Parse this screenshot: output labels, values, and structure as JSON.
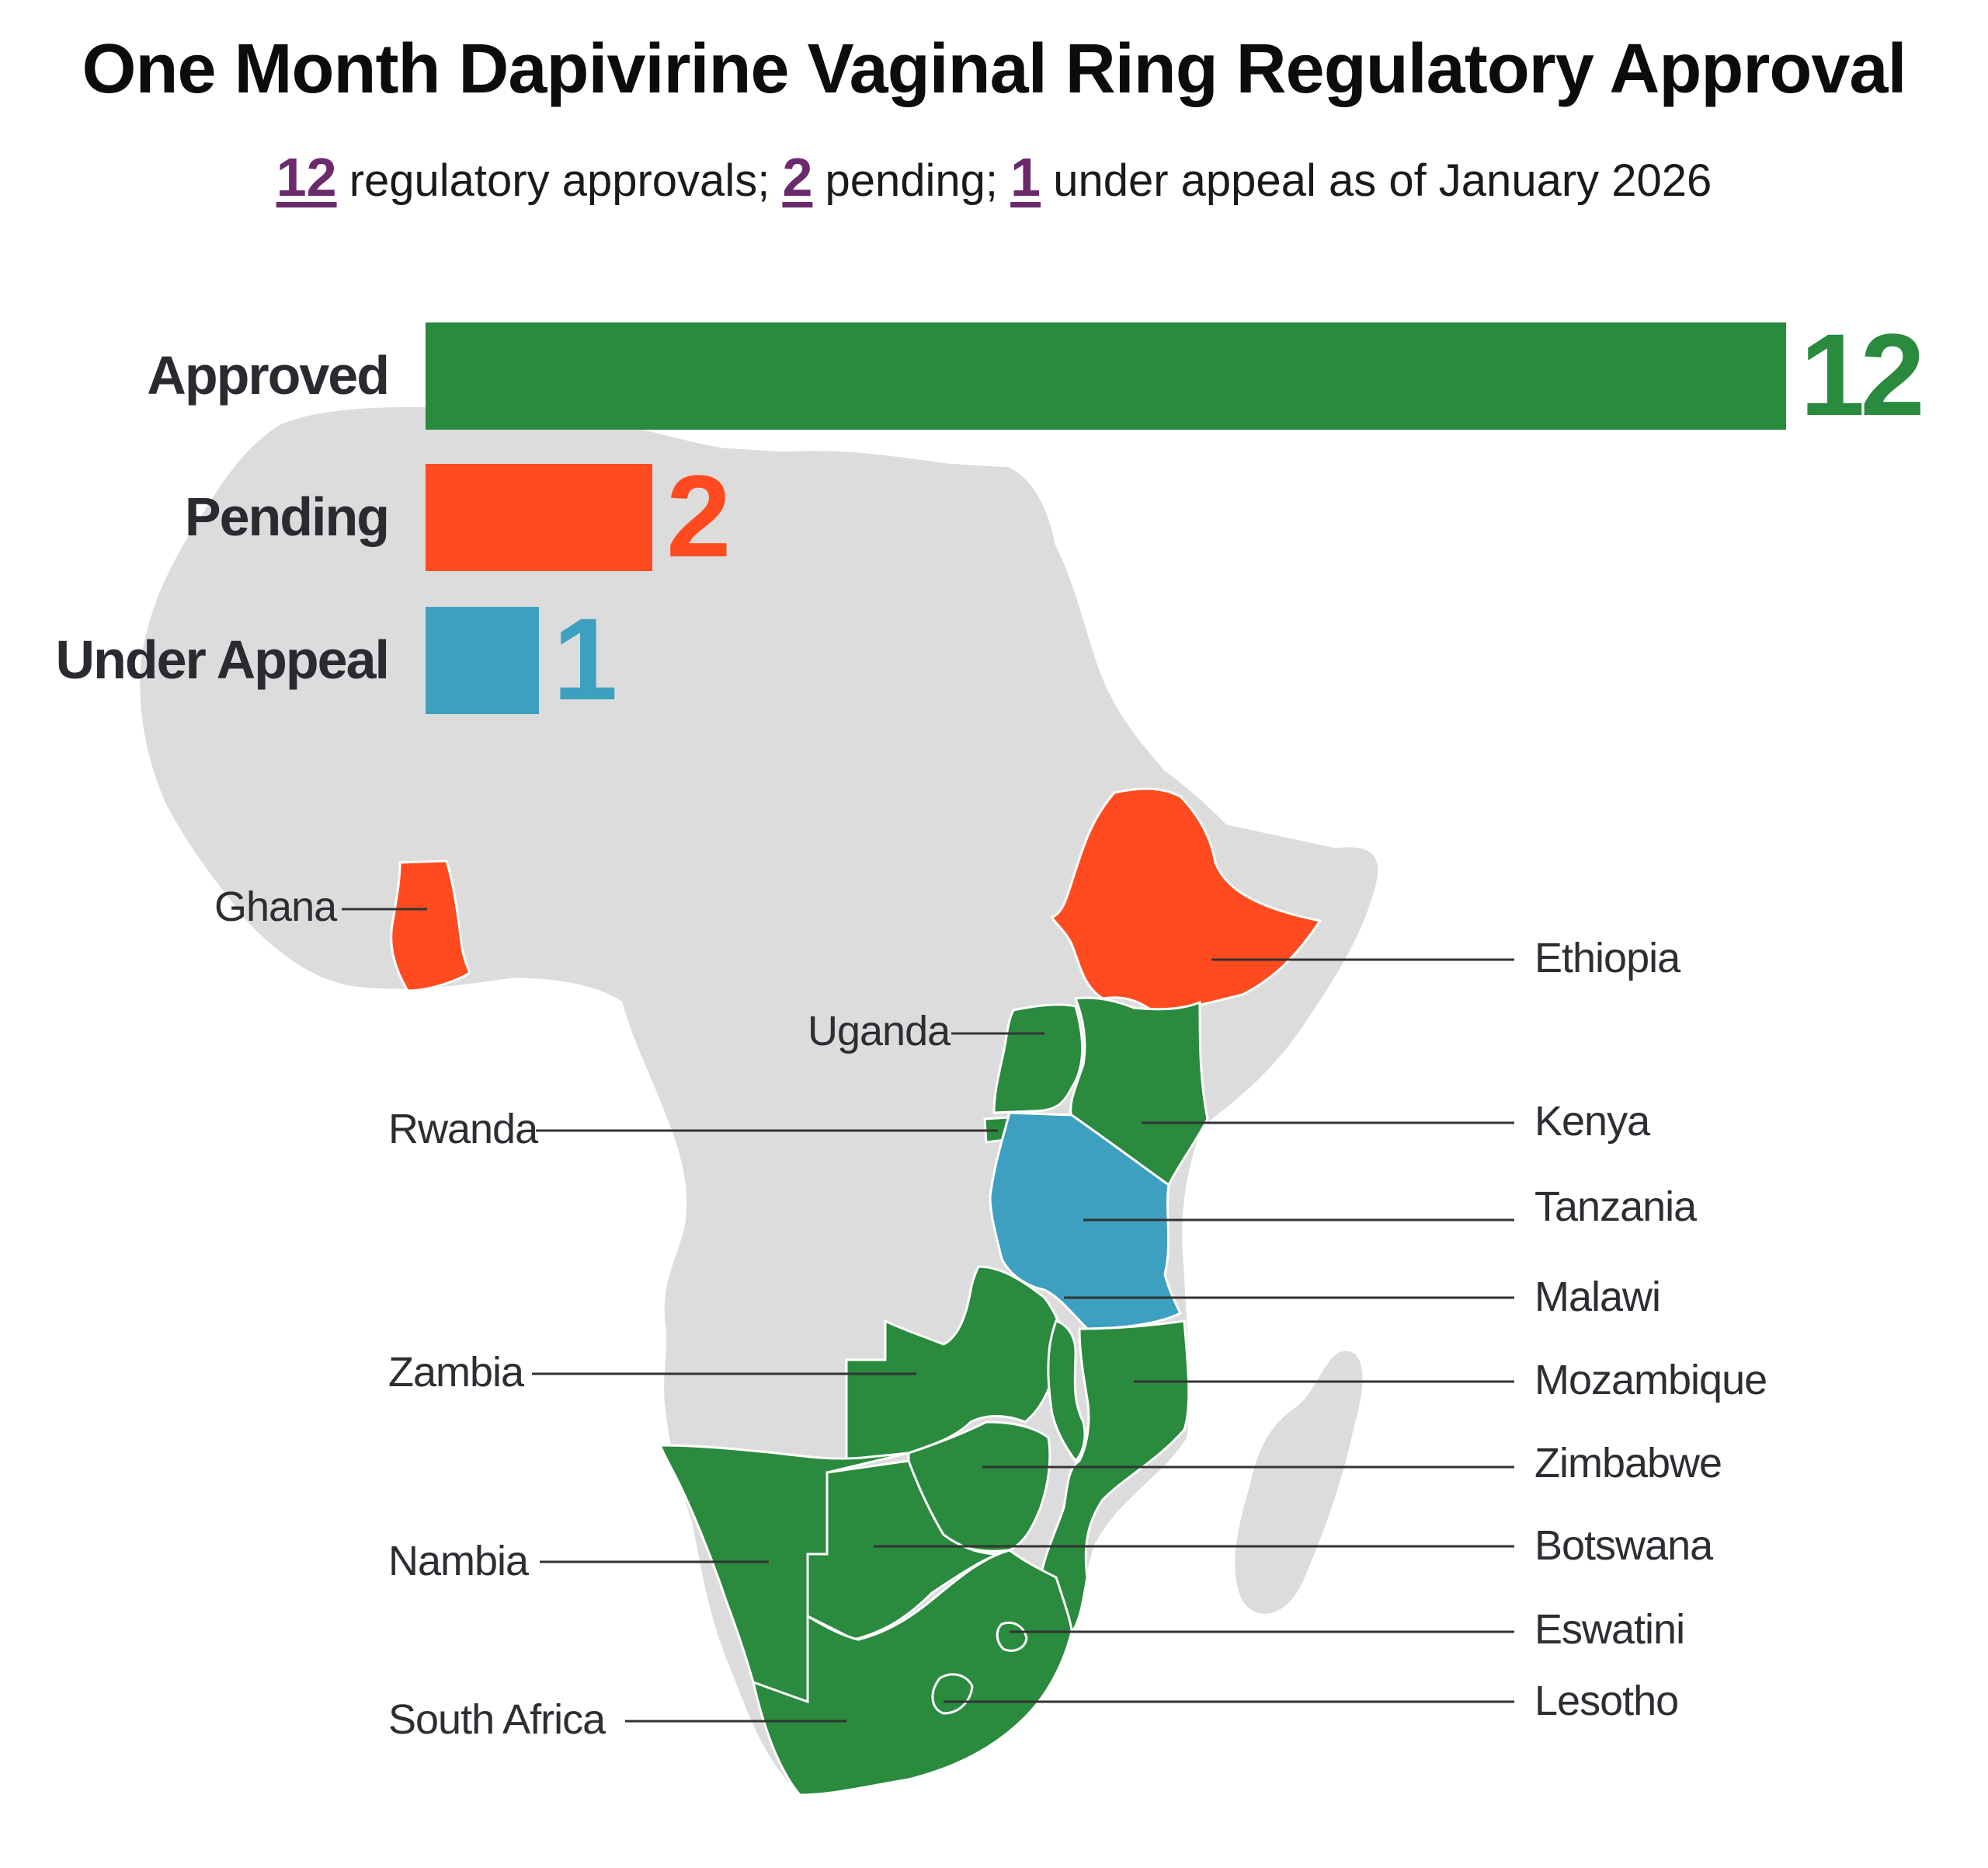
{
  "title": "One Month Dapivirine Vaginal Ring Regulatory Approval",
  "subtitle": {
    "approved_count": "12",
    "approved_text": " regulatory approvals; ",
    "pending_count": "2",
    "pending_text": " pending; ",
    "appeal_count": "1",
    "appeal_text": " under appeal as of January 2026",
    "accent_color": "#6b2a6b"
  },
  "colors": {
    "approved": "#2a8a3e",
    "pending": "#ff4b1f",
    "under_appeal": "#3ea0c0",
    "land": "#dcdcdc",
    "border": "#ffffff"
  },
  "chart_data": {
    "type": "bar",
    "orientation": "horizontal",
    "categories": [
      "Approved",
      "Pending",
      "Under Appeal"
    ],
    "values": [
      12,
      2,
      1
    ],
    "value_labels": [
      "12",
      "2",
      "1"
    ],
    "xlim": [
      0,
      12
    ],
    "grid": false
  },
  "map": {
    "countries": [
      {
        "name": "Ghana",
        "status": "pending"
      },
      {
        "name": "Ethiopia",
        "status": "pending"
      },
      {
        "name": "Uganda",
        "status": "approved"
      },
      {
        "name": "Kenya",
        "status": "approved"
      },
      {
        "name": "Rwanda",
        "status": "approved"
      },
      {
        "name": "Tanzania",
        "status": "under_appeal"
      },
      {
        "name": "Malawi",
        "status": "approved"
      },
      {
        "name": "Zambia",
        "status": "approved"
      },
      {
        "name": "Mozambique",
        "status": "approved"
      },
      {
        "name": "Zimbabwe",
        "status": "approved"
      },
      {
        "name": "Nambia",
        "status": "approved"
      },
      {
        "name": "Botswana",
        "status": "approved"
      },
      {
        "name": "Eswatini",
        "status": "approved"
      },
      {
        "name": "South Africa",
        "status": "approved"
      },
      {
        "name": "Lesotho",
        "status": "approved"
      }
    ]
  }
}
